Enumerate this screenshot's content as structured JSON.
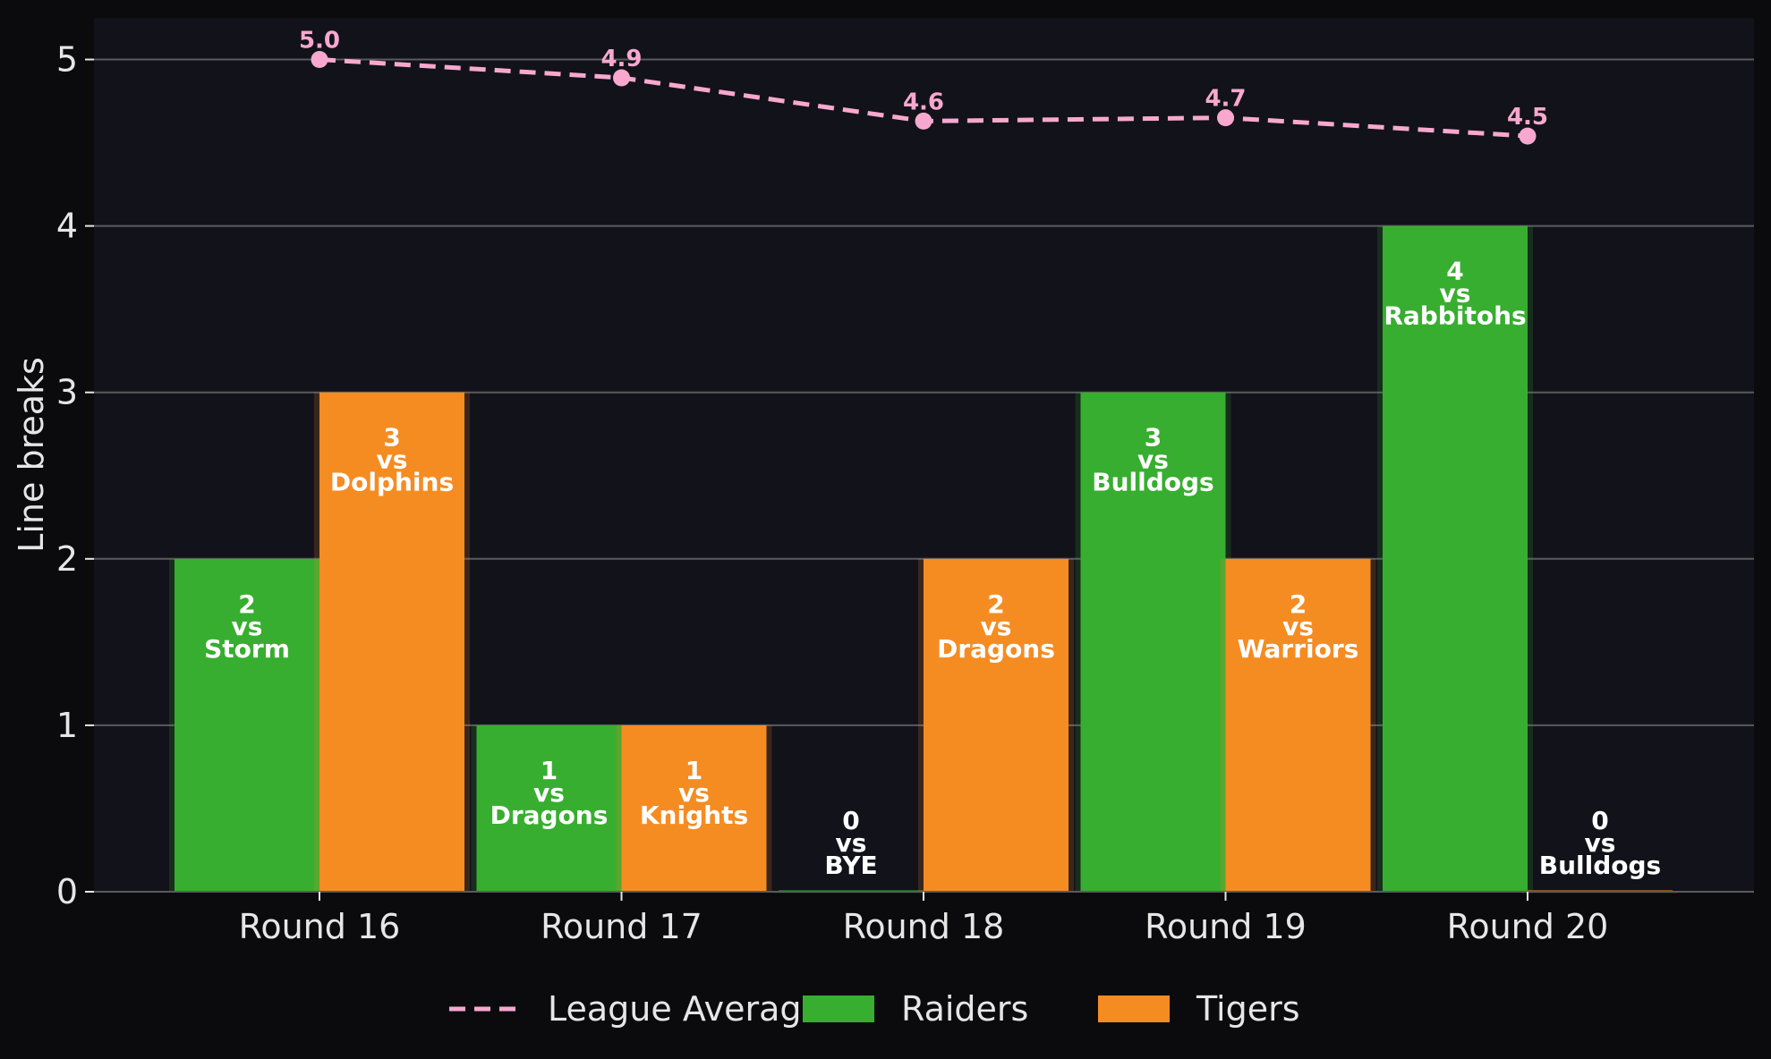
{
  "colors": {
    "page_background": "#0b0b0e",
    "plot_background": "#12121a",
    "grid": "#5a5a5f",
    "raiders": "#37ae2f",
    "tigers": "#f58c22",
    "league_average": "#f8a8cf",
    "text": "#e6e6e6"
  },
  "chart_data": {
    "type": "bar",
    "title": "",
    "xlabel": "",
    "ylabel": "Line breaks",
    "ylim": [
      0,
      5.25
    ],
    "yticks": [
      0,
      1,
      2,
      3,
      4,
      5
    ],
    "grid": true,
    "legend_placement": "bottom",
    "categories": [
      "Round 16",
      "Round 17",
      "Round 18",
      "Round 19",
      "Round 20"
    ],
    "series": [
      {
        "name": "Raiders",
        "kind": "bar",
        "values": [
          2,
          1,
          0,
          3,
          4
        ],
        "labels": [
          "2\nvs\nStorm",
          "1\nvs\nDragons",
          "0\nvs\nBYE",
          "3\nvs\nBulldogs",
          "4\nvs\nRabbitohs"
        ]
      },
      {
        "name": "Tigers",
        "kind": "bar",
        "values": [
          3,
          1,
          2,
          2,
          0
        ],
        "labels": [
          "3\nvs\nDolphins",
          "1\nvs\nKnights",
          "2\nvs\nDragons",
          "2\nvs\nWarriors",
          "0\nvs\nBulldogs"
        ]
      },
      {
        "name": "League Average",
        "kind": "line",
        "style": "dashed",
        "values": [
          5.0,
          4.89,
          4.63,
          4.65,
          4.54
        ],
        "labels": [
          "5.0",
          "4.9",
          "4.6",
          "4.7",
          "4.5"
        ]
      }
    ],
    "legend": [
      "League Average",
      "Raiders",
      "Tigers"
    ]
  }
}
